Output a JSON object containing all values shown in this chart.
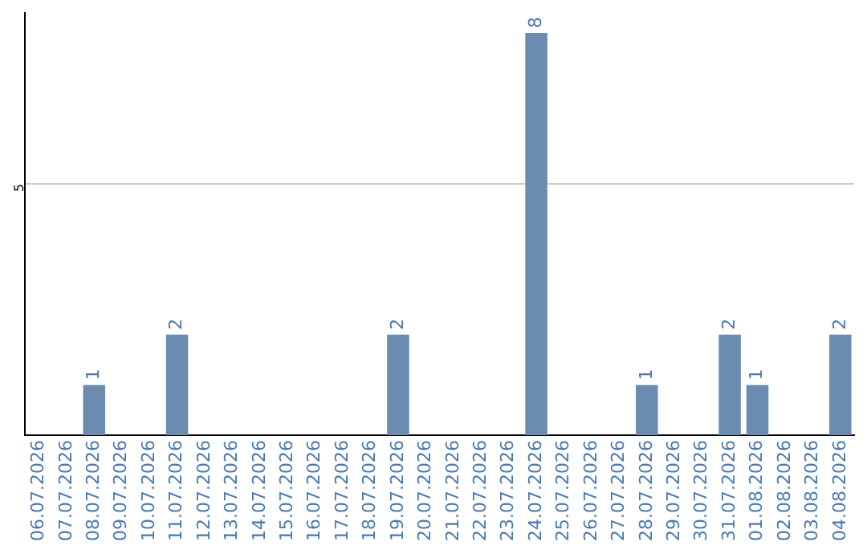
{
  "chart_data": {
    "type": "bar",
    "categories": [
      "06.07.2026",
      "07.07.2026",
      "08.07.2026",
      "09.07.2026",
      "10.07.2026",
      "11.07.2026",
      "12.07.2026",
      "13.07.2026",
      "14.07.2026",
      "15.07.2026",
      "16.07.2026",
      "17.07.2026",
      "18.07.2026",
      "19.07.2026",
      "20.07.2026",
      "21.07.2026",
      "22.07.2026",
      "23.07.2026",
      "24.07.2026",
      "25.07.2026",
      "26.07.2026",
      "27.07.2026",
      "28.07.2026",
      "29.07.2026",
      "30.07.2026",
      "31.07.2026",
      "01.08.2026",
      "02.08.2026",
      "03.08.2026",
      "04.08.2026"
    ],
    "values": [
      0,
      0,
      1,
      0,
      0,
      2,
      0,
      0,
      0,
      0,
      0,
      0,
      0,
      2,
      0,
      0,
      0,
      0,
      8,
      0,
      0,
      0,
      1,
      0,
      0,
      2,
      1,
      0,
      0,
      2
    ],
    "value_labels": [
      null,
      null,
      "1",
      null,
      null,
      "2",
      null,
      null,
      null,
      null,
      null,
      null,
      null,
      "2",
      null,
      null,
      null,
      null,
      "8",
      null,
      null,
      null,
      "1",
      null,
      null,
      "2",
      "1",
      null,
      null,
      "2"
    ],
    "color": "#6b8cae",
    "ylim": [
      0,
      8.4
    ],
    "yticks": [
      5
    ],
    "grid": "y",
    "legend": false
  }
}
